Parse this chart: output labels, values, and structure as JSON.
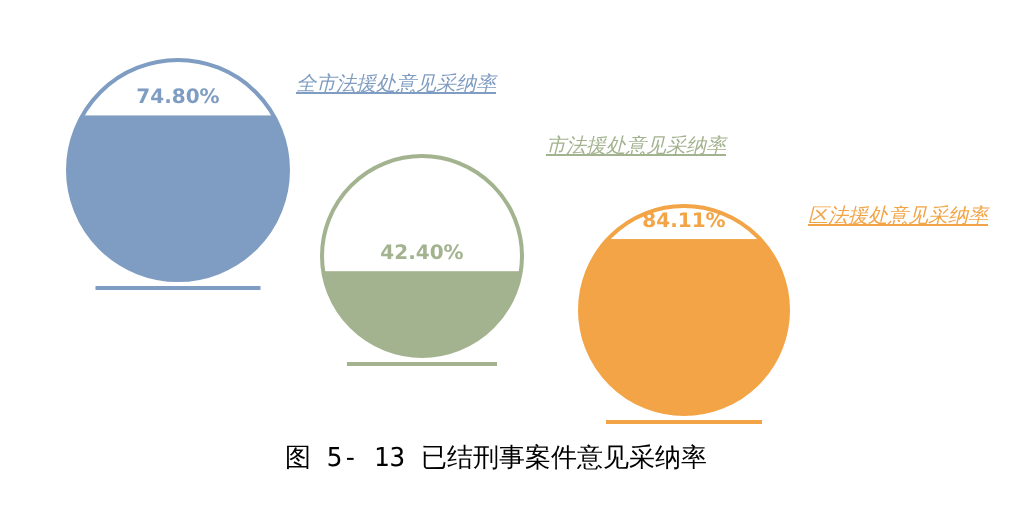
{
  "chart_data": {
    "type": "other",
    "title": "图 5- 13 已结刑事案件意见采纳率",
    "categories": [
      "全市法援处意见采纳率",
      "市法援处意见采纳率",
      "区法援处意见采纳率"
    ],
    "values": [
      74.8,
      42.4,
      84.11
    ],
    "value_labels": [
      "74.80%",
      "42.40%",
      "84.11%"
    ],
    "colors": [
      "#7f9dc2",
      "#a3b38f",
      "#f2a446"
    ]
  }
}
